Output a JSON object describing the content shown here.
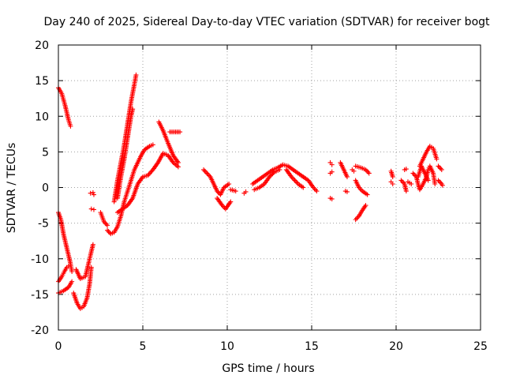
{
  "chart_data": {
    "type": "scatter",
    "title": "Day 240 of 2025, Sidereal Day-to-day VTEC variation (SDTVAR) for receiver bogt",
    "xlabel": "GPS time / hours",
    "ylabel": "SDTVAR / TECUs",
    "xlim": [
      0,
      25
    ],
    "ylim": [
      -20,
      20
    ],
    "xticks": [
      0,
      5,
      10,
      15,
      20,
      25
    ],
    "yticks": [
      -20,
      -15,
      -10,
      -5,
      0,
      5,
      10,
      15,
      20
    ],
    "x_tick_labels": [
      "0",
      "5",
      "10",
      "15",
      "20",
      "25"
    ],
    "y_tick_labels": [
      "-20",
      "-15",
      "-10",
      "-5",
      "0",
      "5",
      "10",
      "15",
      "20"
    ],
    "grid": true,
    "marker": "+",
    "marker_color": "#ff0000",
    "segments": [
      {
        "points": [
          [
            0.0,
            14.0
          ],
          [
            0.2,
            13.2
          ],
          [
            0.4,
            11.5
          ],
          [
            0.6,
            9.5
          ],
          [
            0.72,
            8.6
          ]
        ]
      },
      {
        "points": [
          [
            0.0,
            -3.5
          ],
          [
            0.15,
            -4.5
          ],
          [
            0.3,
            -6.5
          ],
          [
            0.5,
            -8.5
          ],
          [
            0.7,
            -10.5
          ],
          [
            0.8,
            -11.8
          ]
        ]
      },
      {
        "points": [
          [
            0.0,
            -13.2
          ],
          [
            0.2,
            -12.5
          ],
          [
            0.35,
            -11.8
          ],
          [
            0.5,
            -11.2
          ],
          [
            0.6,
            -11.0
          ]
        ]
      },
      {
        "points": [
          [
            0.0,
            -14.8
          ],
          [
            0.3,
            -14.5
          ],
          [
            0.6,
            -14.0
          ],
          [
            0.8,
            -13.2
          ]
        ]
      },
      {
        "points": [
          [
            0.9,
            -14.8
          ],
          [
            1.1,
            -16.2
          ],
          [
            1.3,
            -17.0
          ],
          [
            1.5,
            -16.7
          ],
          [
            1.7,
            -15.5
          ],
          [
            1.85,
            -13.5
          ],
          [
            1.95,
            -11.2
          ]
        ]
      },
      {
        "points": [
          [
            1.05,
            -11.5
          ],
          [
            1.3,
            -12.8
          ],
          [
            1.6,
            -12.5
          ],
          [
            1.8,
            -10.5
          ],
          [
            2.05,
            -8.0
          ]
        ]
      },
      {
        "points": [
          [
            1.9,
            -0.8
          ],
          [
            2.05,
            -0.7
          ],
          [
            2.1,
            -1.0
          ]
        ]
      },
      {
        "points": [
          [
            1.95,
            -3.0
          ],
          [
            2.1,
            -3.1
          ]
        ]
      },
      {
        "points": [
          [
            2.5,
            -3.5
          ],
          [
            2.7,
            -4.8
          ],
          [
            2.9,
            -5.3
          ]
        ]
      },
      {
        "points": [
          [
            2.9,
            -6.0
          ],
          [
            3.1,
            -6.5
          ],
          [
            3.3,
            -6.3
          ],
          [
            3.5,
            -5.5
          ],
          [
            3.7,
            -4.0
          ],
          [
            3.9,
            -2.0
          ],
          [
            4.1,
            -0.5
          ],
          [
            4.3,
            1.0
          ],
          [
            4.5,
            2.5
          ],
          [
            4.7,
            3.5
          ],
          [
            4.9,
            4.5
          ],
          [
            5.1,
            5.3
          ],
          [
            5.4,
            5.8
          ],
          [
            5.6,
            6.0
          ]
        ]
      },
      {
        "points": [
          [
            3.3,
            -2.0
          ],
          [
            3.5,
            1.0
          ],
          [
            3.7,
            3.5
          ],
          [
            3.9,
            6.0
          ],
          [
            4.1,
            9.0
          ],
          [
            4.3,
            12.0
          ],
          [
            4.5,
            14.5
          ],
          [
            4.6,
            15.8
          ]
        ]
      },
      {
        "points": [
          [
            3.5,
            -1.5
          ],
          [
            3.7,
            1.5
          ],
          [
            3.9,
            4.0
          ],
          [
            4.1,
            7.0
          ],
          [
            4.3,
            10.0
          ],
          [
            4.4,
            11.0
          ]
        ]
      },
      {
        "points": [
          [
            3.5,
            -3.5
          ],
          [
            3.8,
            -3.0
          ],
          [
            4.1,
            -2.5
          ],
          [
            4.4,
            -1.5
          ],
          [
            4.7,
            0.5
          ],
          [
            5.0,
            1.5
          ],
          [
            5.3,
            1.7
          ],
          [
            5.6,
            2.5
          ],
          [
            5.9,
            3.5
          ],
          [
            6.2,
            4.8
          ],
          [
            6.5,
            4.5
          ],
          [
            6.8,
            3.5
          ],
          [
            7.1,
            2.9
          ]
        ]
      },
      {
        "points": [
          [
            5.95,
            9.2
          ],
          [
            6.2,
            8.0
          ],
          [
            6.5,
            6.2
          ],
          [
            6.8,
            4.5
          ],
          [
            7.1,
            3.5
          ]
        ]
      },
      {
        "points": [
          [
            6.6,
            7.8
          ],
          [
            7.2,
            7.8
          ]
        ]
      },
      {
        "points": [
          [
            8.6,
            2.5
          ],
          [
            9.0,
            1.5
          ],
          [
            9.2,
            0.5
          ],
          [
            9.4,
            -0.5
          ],
          [
            9.6,
            -1.0
          ],
          [
            9.8,
            0.0
          ],
          [
            10.1,
            0.5
          ]
        ]
      },
      {
        "points": [
          [
            9.4,
            -1.5
          ],
          [
            9.7,
            -2.5
          ],
          [
            9.9,
            -3.0
          ],
          [
            10.2,
            -2.0
          ]
        ]
      },
      {
        "points": [
          [
            10.2,
            -0.3
          ],
          [
            10.5,
            -0.5
          ]
        ]
      },
      {
        "points": [
          [
            11.0,
            -0.8
          ],
          [
            11.1,
            -0.6
          ]
        ]
      },
      {
        "points": [
          [
            11.5,
            0.5
          ],
          [
            11.8,
            1.0
          ],
          [
            12.1,
            1.5
          ],
          [
            12.4,
            2.0
          ],
          [
            12.7,
            2.5
          ],
          [
            13.0,
            2.8
          ],
          [
            13.3,
            3.2
          ],
          [
            13.6,
            3.0
          ],
          [
            13.9,
            2.5
          ],
          [
            14.2,
            2.0
          ],
          [
            14.5,
            1.5
          ],
          [
            14.8,
            1.0
          ],
          [
            15.1,
            0.0
          ],
          [
            15.3,
            -0.5
          ]
        ]
      },
      {
        "points": [
          [
            11.6,
            -0.3
          ],
          [
            11.9,
            0.0
          ],
          [
            12.2,
            0.5
          ],
          [
            12.5,
            1.5
          ],
          [
            12.8,
            2.2
          ],
          [
            13.1,
            2.5
          ]
        ]
      },
      {
        "points": [
          [
            13.5,
            2.5
          ],
          [
            13.8,
            1.5
          ],
          [
            14.2,
            0.5
          ],
          [
            14.5,
            0.0
          ]
        ]
      },
      {
        "points": [
          [
            16.1,
            3.5
          ],
          [
            16.2,
            3.2
          ]
        ]
      },
      {
        "points": [
          [
            16.1,
            2.0
          ],
          [
            16.2,
            2.2
          ]
        ]
      },
      {
        "points": [
          [
            16.1,
            -1.5
          ],
          [
            16.2,
            -1.6
          ]
        ]
      },
      {
        "points": [
          [
            16.7,
            3.5
          ],
          [
            16.9,
            2.5
          ],
          [
            17.1,
            1.5
          ]
        ]
      },
      {
        "points": [
          [
            17.0,
            -0.5
          ],
          [
            17.1,
            -0.6
          ]
        ]
      },
      {
        "points": [
          [
            17.4,
            2.5
          ],
          [
            17.5,
            2.3
          ]
        ]
      },
      {
        "points": [
          [
            17.6,
            3.0
          ],
          [
            17.9,
            2.8
          ],
          [
            18.2,
            2.5
          ],
          [
            18.4,
            2.0
          ]
        ]
      },
      {
        "points": [
          [
            17.6,
            1.0
          ],
          [
            17.8,
            0.0
          ],
          [
            18.0,
            -0.5
          ],
          [
            18.3,
            -1.0
          ]
        ]
      },
      {
        "points": [
          [
            17.6,
            -4.5
          ],
          [
            17.8,
            -4.0
          ],
          [
            18.0,
            -3.2
          ],
          [
            18.2,
            -2.5
          ]
        ]
      },
      {
        "points": [
          [
            19.7,
            2.3
          ],
          [
            19.8,
            1.5
          ]
        ]
      },
      {
        "points": [
          [
            19.7,
            0.8
          ],
          [
            19.8,
            0.5
          ]
        ]
      },
      {
        "points": [
          [
            20.3,
            1.0
          ],
          [
            20.5,
            0.5
          ],
          [
            20.6,
            -0.5
          ]
        ]
      },
      {
        "points": [
          [
            20.5,
            2.5
          ],
          [
            20.6,
            2.6
          ]
        ]
      },
      {
        "points": [
          [
            20.7,
            0.8
          ],
          [
            20.9,
            0.5
          ]
        ]
      },
      {
        "points": [
          [
            21.0,
            2.0
          ],
          [
            21.2,
            1.5
          ],
          [
            21.3,
            0.5
          ],
          [
            21.4,
            -0.3
          ],
          [
            21.6,
            0.5
          ],
          [
            21.8,
            1.5
          ],
          [
            21.9,
            2.5
          ],
          [
            22.0,
            3.0
          ],
          [
            22.2,
            2.0
          ],
          [
            22.3,
            0.5
          ]
        ]
      },
      {
        "points": [
          [
            21.4,
            3.0
          ],
          [
            21.6,
            4.0
          ],
          [
            21.8,
            5.0
          ],
          [
            22.0,
            5.8
          ],
          [
            22.2,
            5.5
          ],
          [
            22.4,
            4.0
          ]
        ]
      },
      {
        "points": [
          [
            21.3,
            1.5
          ],
          [
            21.5,
            3.0
          ],
          [
            21.7,
            2.0
          ],
          [
            21.9,
            1.0
          ]
        ]
      },
      {
        "points": [
          [
            22.5,
            3.0
          ],
          [
            22.7,
            2.5
          ]
        ]
      },
      {
        "points": [
          [
            22.5,
            1.0
          ],
          [
            22.7,
            0.5
          ],
          [
            22.75,
            0.3
          ]
        ]
      }
    ]
  }
}
